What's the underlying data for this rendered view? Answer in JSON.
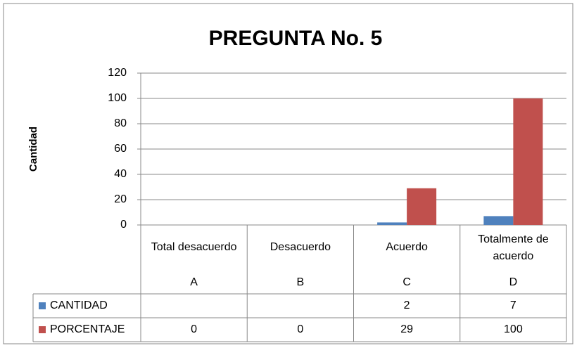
{
  "chart_data": {
    "type": "bar",
    "title": "PREGUNTA No. 5",
    "y_axis_label": "Cantidad",
    "categories": [
      "Total desacuerdo",
      "Desacuerdo",
      "Acuerdo",
      "Totalmente de acuerdo"
    ],
    "category_codes": [
      "A",
      "B",
      "C",
      "D"
    ],
    "series": [
      {
        "name": "CANTIDAD",
        "color": "#4f81bd",
        "values": [
          null,
          null,
          2,
          7
        ]
      },
      {
        "name": "PORCENTAJE",
        "color": "#c0504d",
        "values": [
          0,
          0,
          29,
          100
        ]
      }
    ],
    "ylim": [
      0,
      120
    ],
    "yticks": [
      0,
      20,
      40,
      60,
      80,
      100,
      120
    ],
    "grid": true
  }
}
